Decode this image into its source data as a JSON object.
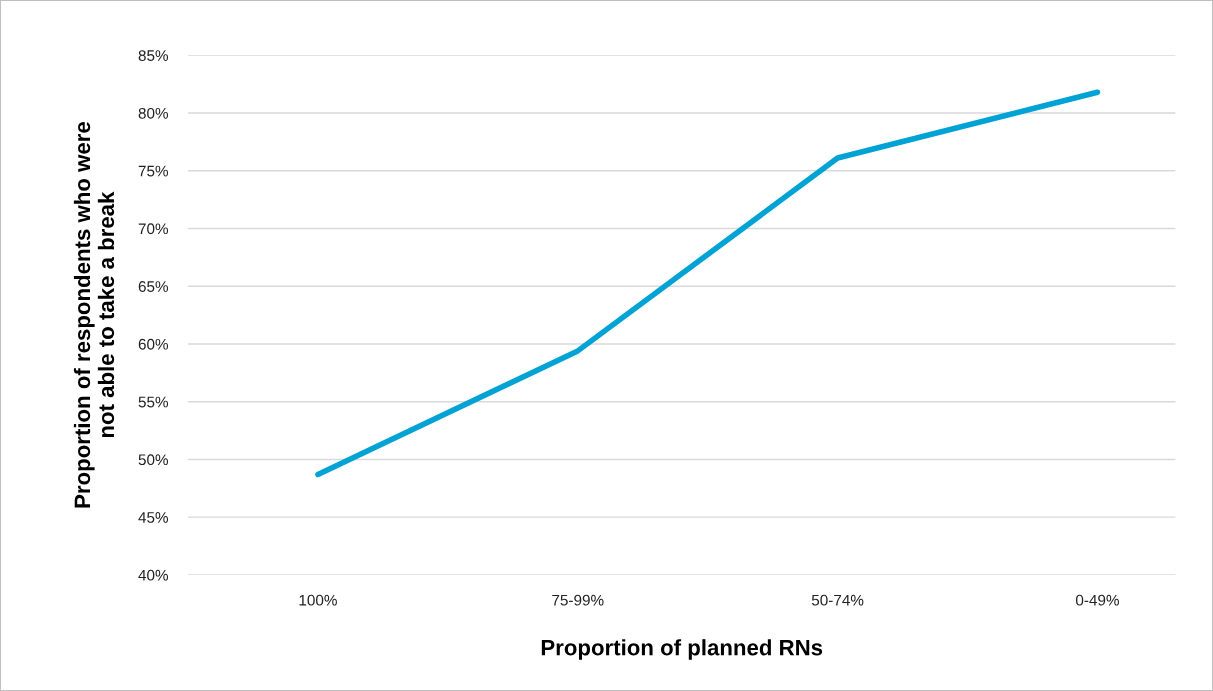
{
  "chart_data": {
    "type": "line",
    "xlabel": "Proportion of planned RNs",
    "ylabel": "Proportion of respondents who were\nnot able to take a break",
    "categories": [
      "100%",
      "75-99%",
      "50-74%",
      "0-49%"
    ],
    "series": [
      {
        "color": "#00a3d3",
        "values": [
          48.7,
          59.4,
          76.1,
          81.8
        ]
      }
    ],
    "ylim": [
      40,
      85
    ],
    "yticks": [
      {
        "value": 40,
        "label": "40%"
      },
      {
        "value": 45,
        "label": "45%"
      },
      {
        "value": 50,
        "label": "50%"
      },
      {
        "value": 55,
        "label": "55%"
      },
      {
        "value": 60,
        "label": "60%"
      },
      {
        "value": 65,
        "label": "65%"
      },
      {
        "value": 70,
        "label": "70%"
      },
      {
        "value": 75,
        "label": "75%"
      },
      {
        "value": 80,
        "label": "80%"
      },
      {
        "value": 85,
        "label": "85%"
      }
    ],
    "grid": "y",
    "marker": "none",
    "line_style": "solid"
  }
}
